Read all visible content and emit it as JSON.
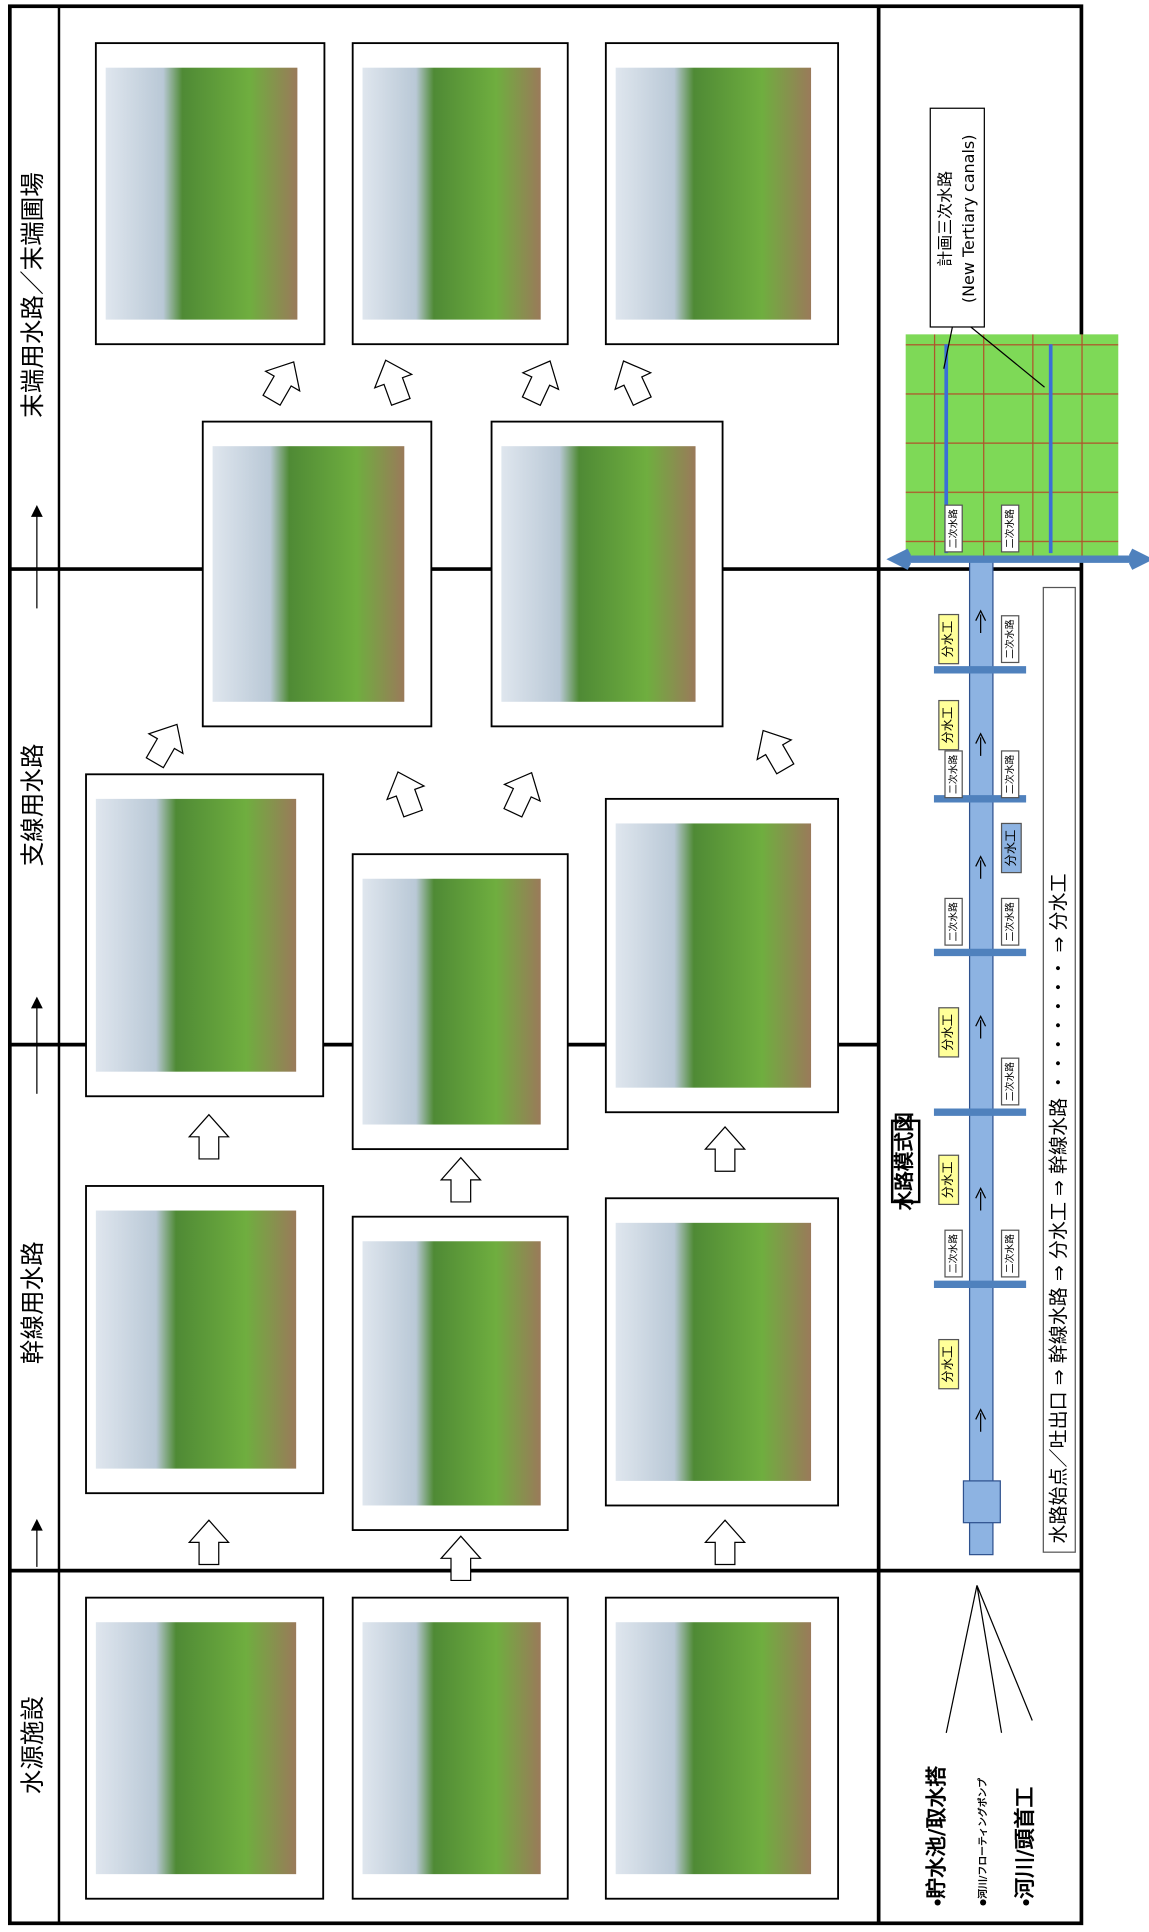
{
  "columns": [
    "水源施設",
    "幹線用水路",
    "支線用水路",
    "末端用水路／末端圃場"
  ],
  "sources": [
    "貯水池/取水搭",
    "河川/フローティングポンプ",
    "河川/頭首工"
  ],
  "schematic": {
    "title": "水路模式図",
    "flow": "水路始点／吐出口 ⇒ 幹線水路 ⇒ 分水工 ⇒ 幹線水路 ・・・・・・・ ⇒ 分水工",
    "diversions": [
      "分水工",
      "分水工",
      "分水工",
      "分水工",
      "分水工",
      "分水工"
    ],
    "secondary": [
      "二次水路",
      "二次水路",
      "二次水路",
      "二次水路",
      "二次水路",
      "二次水路",
      "二次水路",
      "二次水路",
      "二次水路",
      "二次水路"
    ],
    "tertiary": [
      "計画三次水路",
      "(New Tertiary canals)"
    ]
  }
}
